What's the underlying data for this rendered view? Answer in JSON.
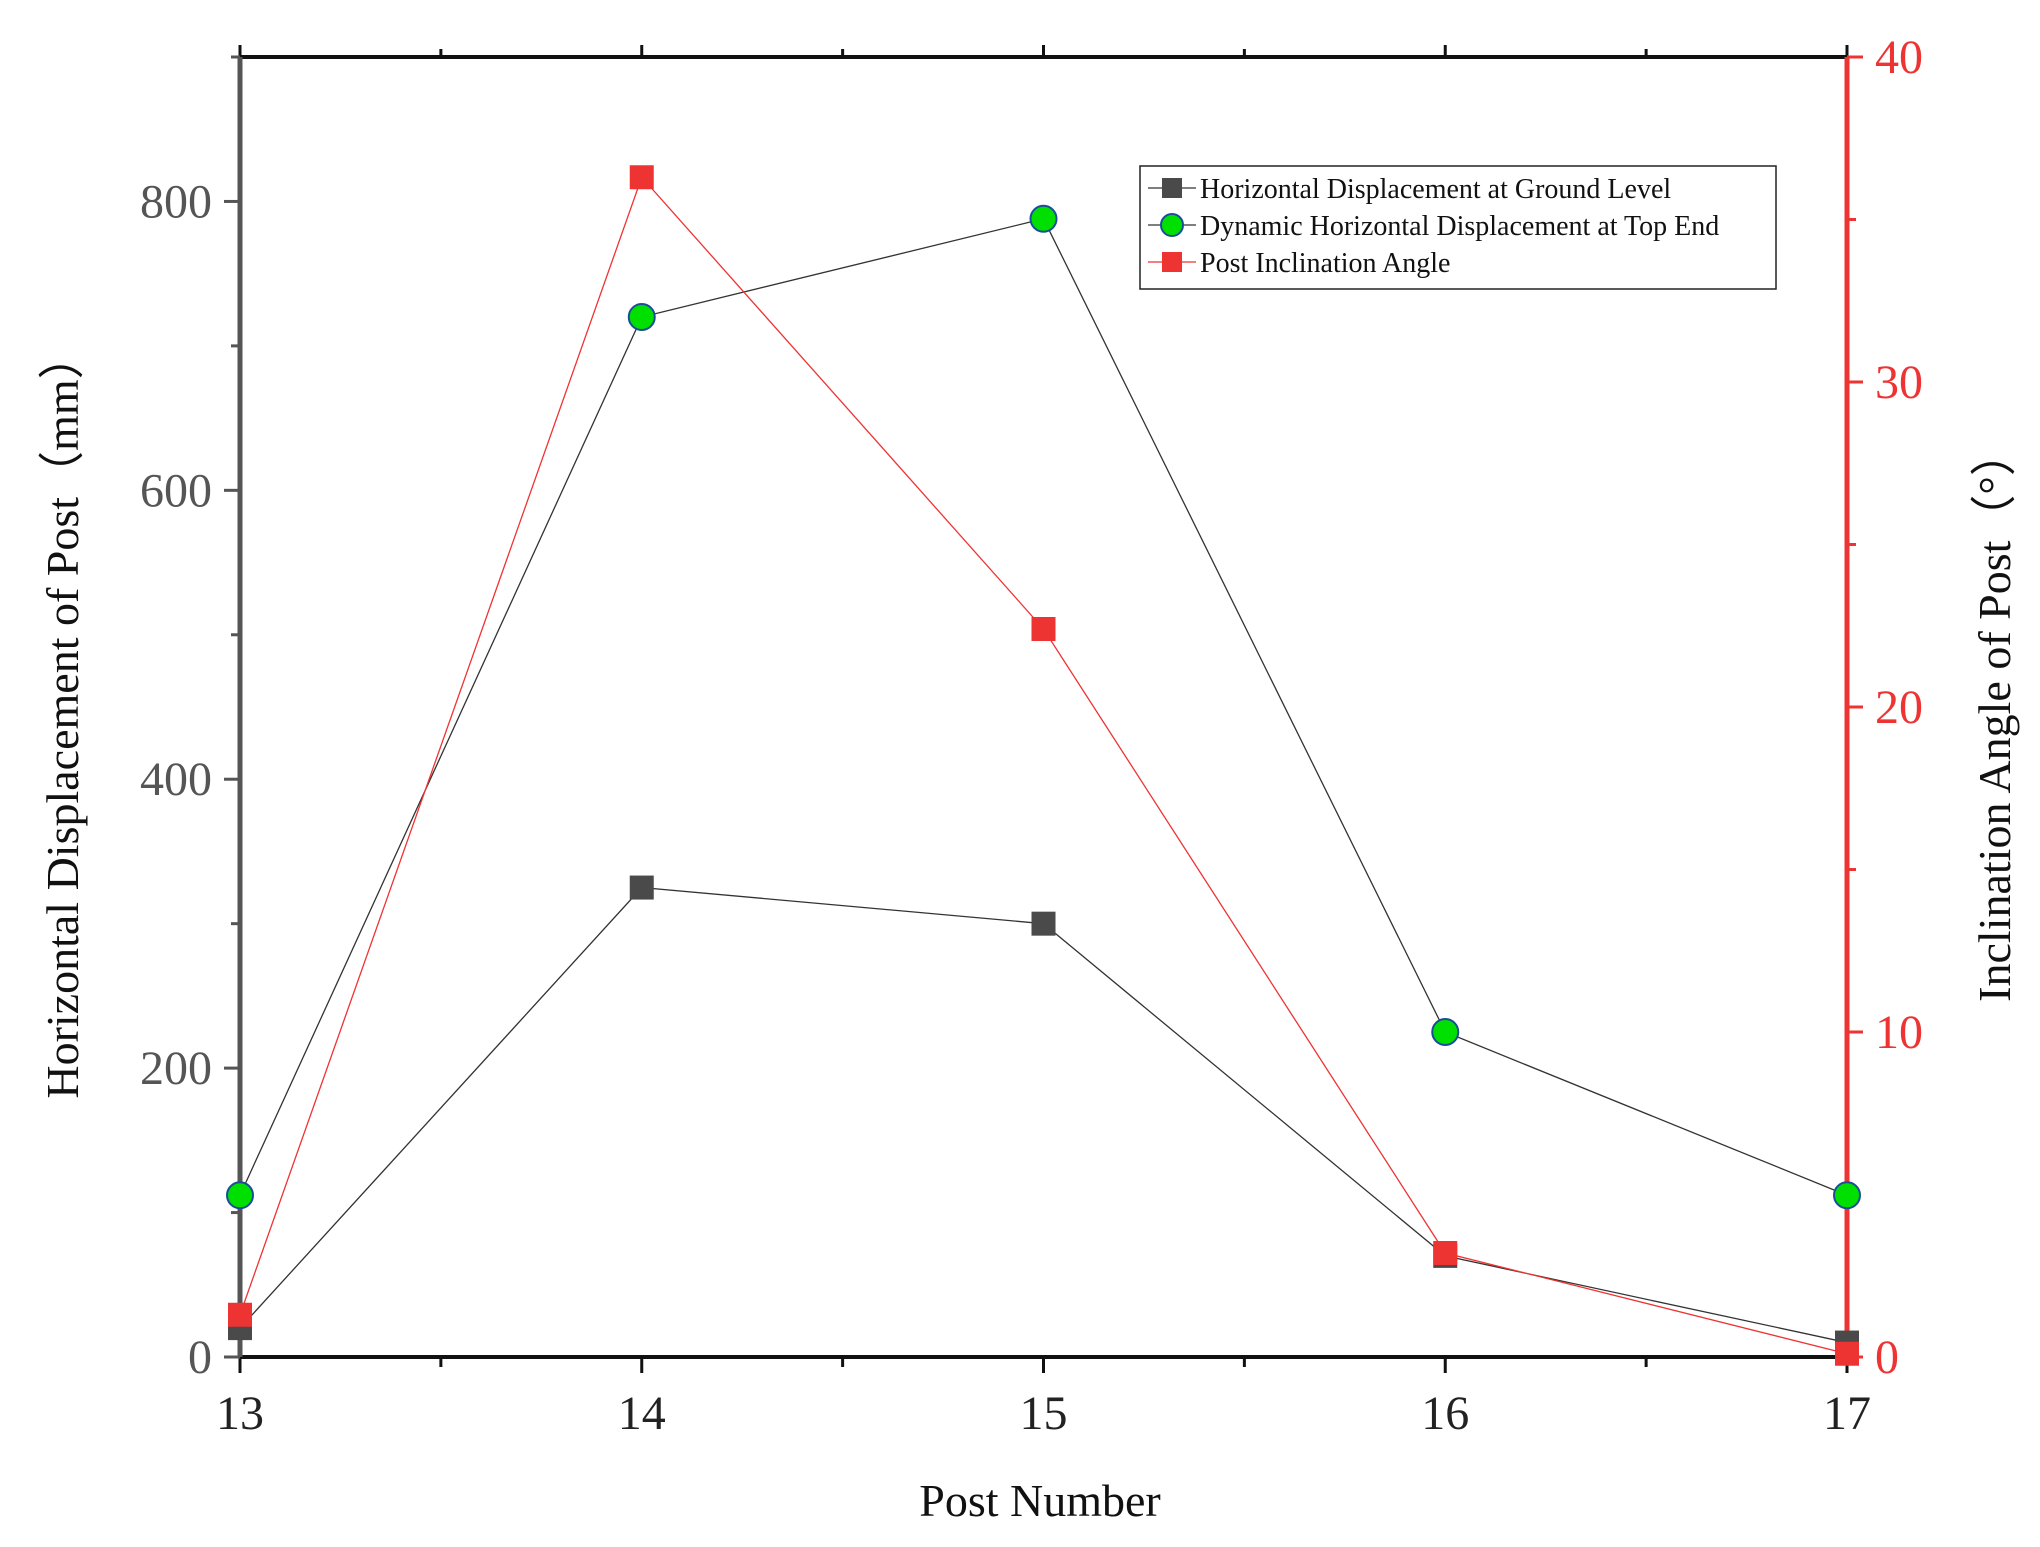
{
  "chart_data": {
    "type": "line",
    "x": [
      13,
      14,
      15,
      16,
      17
    ],
    "xlabel": "Post Number",
    "ylabel_left": "Horizontal Displacement of Post（mm）",
    "ylabel_right": "Inclination Angle of Post（°）",
    "xlim": [
      13,
      17
    ],
    "ylim_left": [
      0,
      900
    ],
    "ylim_right": [
      0,
      40
    ],
    "x_ticks": [
      "13",
      "14",
      "15",
      "16",
      "17"
    ],
    "y_left_ticks": [
      "0",
      "200",
      "400",
      "600",
      "800"
    ],
    "y_right_ticks": [
      "0",
      "10",
      "20",
      "30",
      "40"
    ],
    "grid": false,
    "legend_position": "top-right",
    "series": [
      {
        "name": "Horizontal Displacement at Ground Level",
        "axis": "left",
        "values": [
          20,
          325,
          300,
          70,
          10
        ],
        "color": "#4a4a4a",
        "line_color": "#333333",
        "marker": "square"
      },
      {
        "name": "Dynamic Horizontal Displacement at Top End",
        "axis": "left",
        "values": [
          112,
          720,
          788,
          225,
          112
        ],
        "color": "#00e000",
        "line_color": "#333333",
        "marker": "circle"
      },
      {
        "name": "Post Inclination Angle",
        "axis": "right",
        "values": [
          1.3,
          36.3,
          22.4,
          3.2,
          0.1
        ],
        "color": "#ee3333",
        "line_color": "#ee3333",
        "marker": "square"
      }
    ]
  }
}
